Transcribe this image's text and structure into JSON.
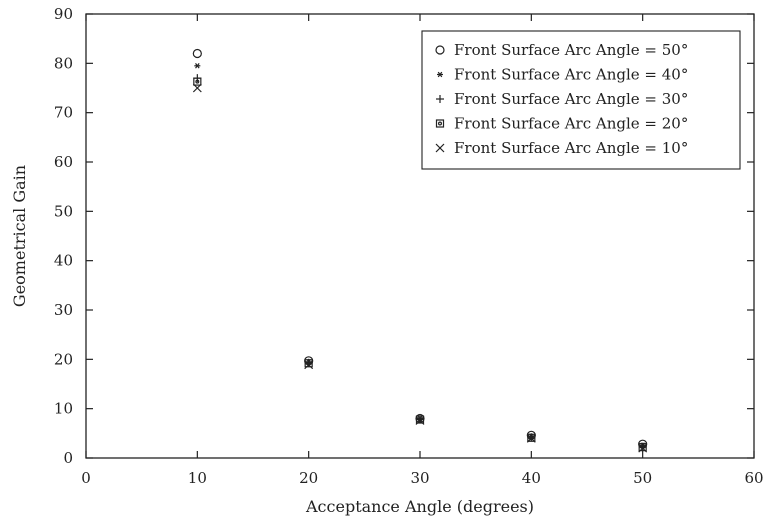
{
  "chart_data": {
    "type": "scatter",
    "title": "",
    "xlabel": "Acceptance Angle (degrees)",
    "ylabel": "Geometrical Gain",
    "xlim": [
      0,
      60
    ],
    "ylim": [
      0,
      90
    ],
    "xticks": [
      "0",
      "10",
      "20",
      "30",
      "40",
      "50",
      "60"
    ],
    "yticks": [
      "0",
      "10",
      "20",
      "30",
      "40",
      "50",
      "60",
      "70",
      "80",
      "90"
    ],
    "grid": false,
    "legend_position": "top-right",
    "x": [
      10,
      20,
      30,
      40,
      50
    ],
    "series": [
      {
        "name": "Front Surface Arc Angle = 50°",
        "marker": "circle",
        "values": [
          82.0,
          19.7,
          8.0,
          4.6,
          2.8
        ]
      },
      {
        "name": "Front Surface Arc Angle = 40°",
        "marker": "asterisk",
        "values": [
          79.5,
          19.5,
          7.9,
          4.4,
          2.6
        ]
      },
      {
        "name": "Front Surface Arc Angle = 30°",
        "marker": "plus",
        "values": [
          77.0,
          19.3,
          7.8,
          4.2,
          2.3
        ]
      },
      {
        "name": "Front Surface Arc Angle = 20°",
        "marker": "square",
        "values": [
          76.3,
          19.2,
          7.8,
          4.1,
          2.2
        ]
      },
      {
        "name": "Front Surface Arc Angle = 10°",
        "marker": "cross",
        "values": [
          75.0,
          18.9,
          7.6,
          4.0,
          2.0
        ]
      }
    ]
  }
}
